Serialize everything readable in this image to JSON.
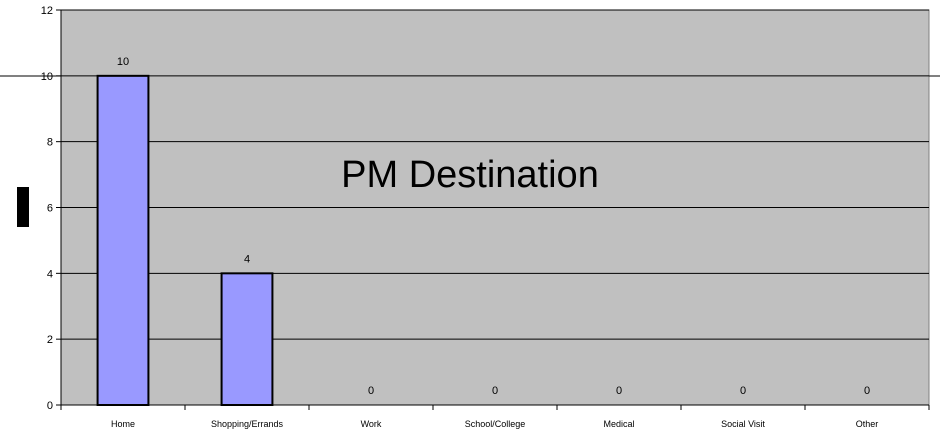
{
  "chart_data": {
    "type": "bar",
    "title": "PM Destination",
    "categories": [
      "Home",
      "Shopping/Errands",
      "Work",
      "School/College",
      "Medical",
      "Social Visit",
      "Other"
    ],
    "values": [
      10,
      4,
      0,
      0,
      0,
      0,
      0
    ],
    "data_labels": [
      "10",
      "4",
      "0",
      "0",
      "0",
      "0",
      "0"
    ],
    "xlabel": "",
    "ylabel": "",
    "ylim": [
      0,
      12
    ],
    "yticks": [
      "0",
      "2",
      "4",
      "6",
      "8",
      "10",
      "12"
    ],
    "grid": true,
    "colors": {
      "bar_fill": "#9999ff",
      "bar_stroke": "#000000",
      "plot_background": "#c0c0c0",
      "gridline": "#000000"
    }
  }
}
